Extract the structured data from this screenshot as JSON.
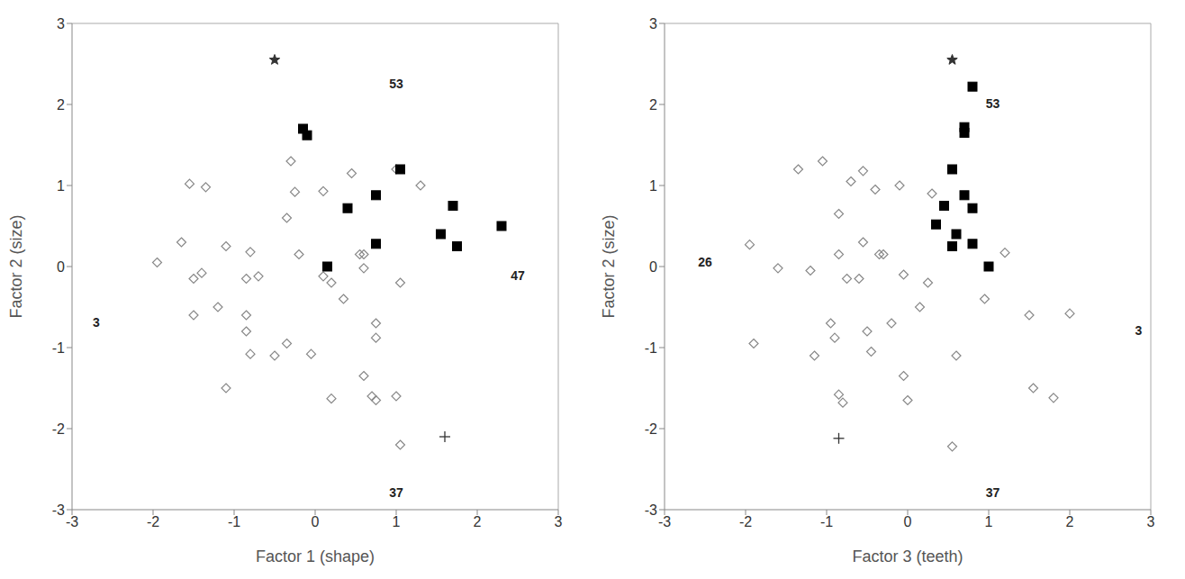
{
  "chart_data": [
    {
      "type": "scatter",
      "x_label": "Factor 1 (shape)",
      "y_label": "Factor 2 (size)",
      "xlim": [
        -3,
        3
      ],
      "ylim": [
        -3,
        3
      ],
      "xticks": [
        -3,
        -2,
        -1,
        0,
        1,
        2,
        3
      ],
      "yticks": [
        -3,
        -2,
        -1,
        0,
        1,
        2,
        3
      ],
      "grid": false,
      "series": [
        {
          "marker": "diamond",
          "color": "#888888",
          "x": [
            -1.95,
            -1.65,
            -1.55,
            -1.35,
            -1.5,
            -1.4,
            -1.5,
            -1.2,
            -1.1,
            -1.1,
            -0.8,
            -0.85,
            -0.7,
            -0.85,
            -0.85,
            -0.8,
            -0.5,
            -0.35,
            -0.05,
            -0.35,
            -0.3,
            -0.25,
            -0.2,
            0.1,
            0.2,
            0.1,
            0.35,
            0.45,
            0.55,
            0.6,
            0.6,
            0.75,
            0.75,
            0.6,
            0.7,
            0.75,
            0.2,
            1.0,
            1.05,
            1.05,
            1.3,
            1.0
          ],
          "y": [
            0.05,
            0.3,
            1.02,
            0.98,
            -0.15,
            -0.08,
            -0.6,
            -0.5,
            0.25,
            -1.5,
            0.18,
            -0.15,
            -0.12,
            -0.6,
            -0.8,
            -1.08,
            -1.1,
            -0.95,
            -1.08,
            0.6,
            1.3,
            0.92,
            0.15,
            0.93,
            -0.2,
            -0.12,
            -0.4,
            1.15,
            0.15,
            0.15,
            -0.02,
            -0.7,
            -0.88,
            -1.35,
            -1.6,
            -1.65,
            -1.63,
            -1.6,
            -2.2,
            -0.2,
            1.0,
            1.2
          ]
        },
        {
          "marker": "square",
          "color": "#000000",
          "x": [
            -0.15,
            -0.1,
            1.05,
            0.75,
            0.4,
            1.7,
            1.55,
            1.75,
            2.3,
            0.75,
            0.15
          ],
          "y": [
            1.7,
            1.62,
            1.2,
            0.88,
            0.72,
            0.75,
            0.4,
            0.25,
            0.5,
            0.28,
            0.0
          ]
        },
        {
          "marker": "star",
          "color": "#333333",
          "x": [
            -0.5
          ],
          "y": [
            2.55
          ]
        },
        {
          "marker": "cross",
          "color": "#333333",
          "x": [
            1.6
          ],
          "y": [
            -2.1
          ]
        }
      ],
      "annotations": [
        {
          "text": "53",
          "x": 1.0,
          "y": 2.25
        },
        {
          "text": "3",
          "x": -2.7,
          "y": -0.7
        },
        {
          "text": "47",
          "x": 2.5,
          "y": -0.12
        },
        {
          "text": "37",
          "x": 1.0,
          "y": -2.8
        }
      ]
    },
    {
      "type": "scatter",
      "x_label": "Factor 3 (teeth)",
      "y_label": "Factor 2 (size)",
      "xlim": [
        -3,
        3
      ],
      "ylim": [
        -3,
        3
      ],
      "xticks": [
        -3,
        -2,
        -1,
        0,
        1,
        2,
        3
      ],
      "yticks": [
        -3,
        -2,
        -1,
        0,
        1,
        2,
        3
      ],
      "grid": false,
      "series": [
        {
          "marker": "diamond",
          "color": "#888888",
          "x": [
            -1.95,
            -1.9,
            -1.6,
            -1.35,
            -1.2,
            -1.15,
            -1.05,
            -0.95,
            -0.85,
            -0.9,
            -0.85,
            -0.8,
            -0.85,
            -0.75,
            -0.7,
            -0.6,
            -0.55,
            -0.55,
            -0.5,
            -0.45,
            -0.4,
            -0.35,
            -0.3,
            -0.2,
            -0.1,
            -0.05,
            -0.05,
            0.0,
            0.15,
            0.25,
            0.3,
            0.55,
            0.6,
            0.95,
            1.2,
            1.5,
            1.55,
            1.8,
            2.0
          ],
          "y": [
            0.27,
            -0.95,
            -0.02,
            1.2,
            -0.05,
            -1.1,
            1.3,
            -0.7,
            0.15,
            -0.88,
            -1.58,
            -1.68,
            0.65,
            -0.15,
            1.05,
            -0.15,
            0.3,
            1.18,
            -0.8,
            -1.05,
            0.95,
            0.15,
            0.15,
            -0.7,
            1.0,
            -0.1,
            -1.35,
            -1.65,
            -0.5,
            -0.2,
            0.9,
            -2.22,
            -1.1,
            -0.4,
            0.17,
            -0.6,
            -1.5,
            -1.62,
            -0.58
          ]
        },
        {
          "marker": "square",
          "color": "#000000",
          "x": [
            0.8,
            0.7,
            0.7,
            0.55,
            0.45,
            0.7,
            0.8,
            0.35,
            0.6,
            0.55,
            0.8,
            1.0
          ],
          "y": [
            2.22,
            1.72,
            1.65,
            1.2,
            0.75,
            0.88,
            0.72,
            0.52,
            0.4,
            0.25,
            0.28,
            0.0
          ]
        },
        {
          "marker": "star",
          "color": "#333333",
          "x": [
            0.55
          ],
          "y": [
            2.55
          ]
        },
        {
          "marker": "cross",
          "color": "#333333",
          "x": [
            -0.85
          ],
          "y": [
            -2.12
          ]
        }
      ],
      "annotations": [
        {
          "text": "53",
          "x": 1.05,
          "y": 2.0
        },
        {
          "text": "26",
          "x": -2.5,
          "y": 0.05
        },
        {
          "text": "3",
          "x": 2.85,
          "y": -0.8
        },
        {
          "text": "37",
          "x": 1.05,
          "y": -2.8
        }
      ]
    }
  ]
}
